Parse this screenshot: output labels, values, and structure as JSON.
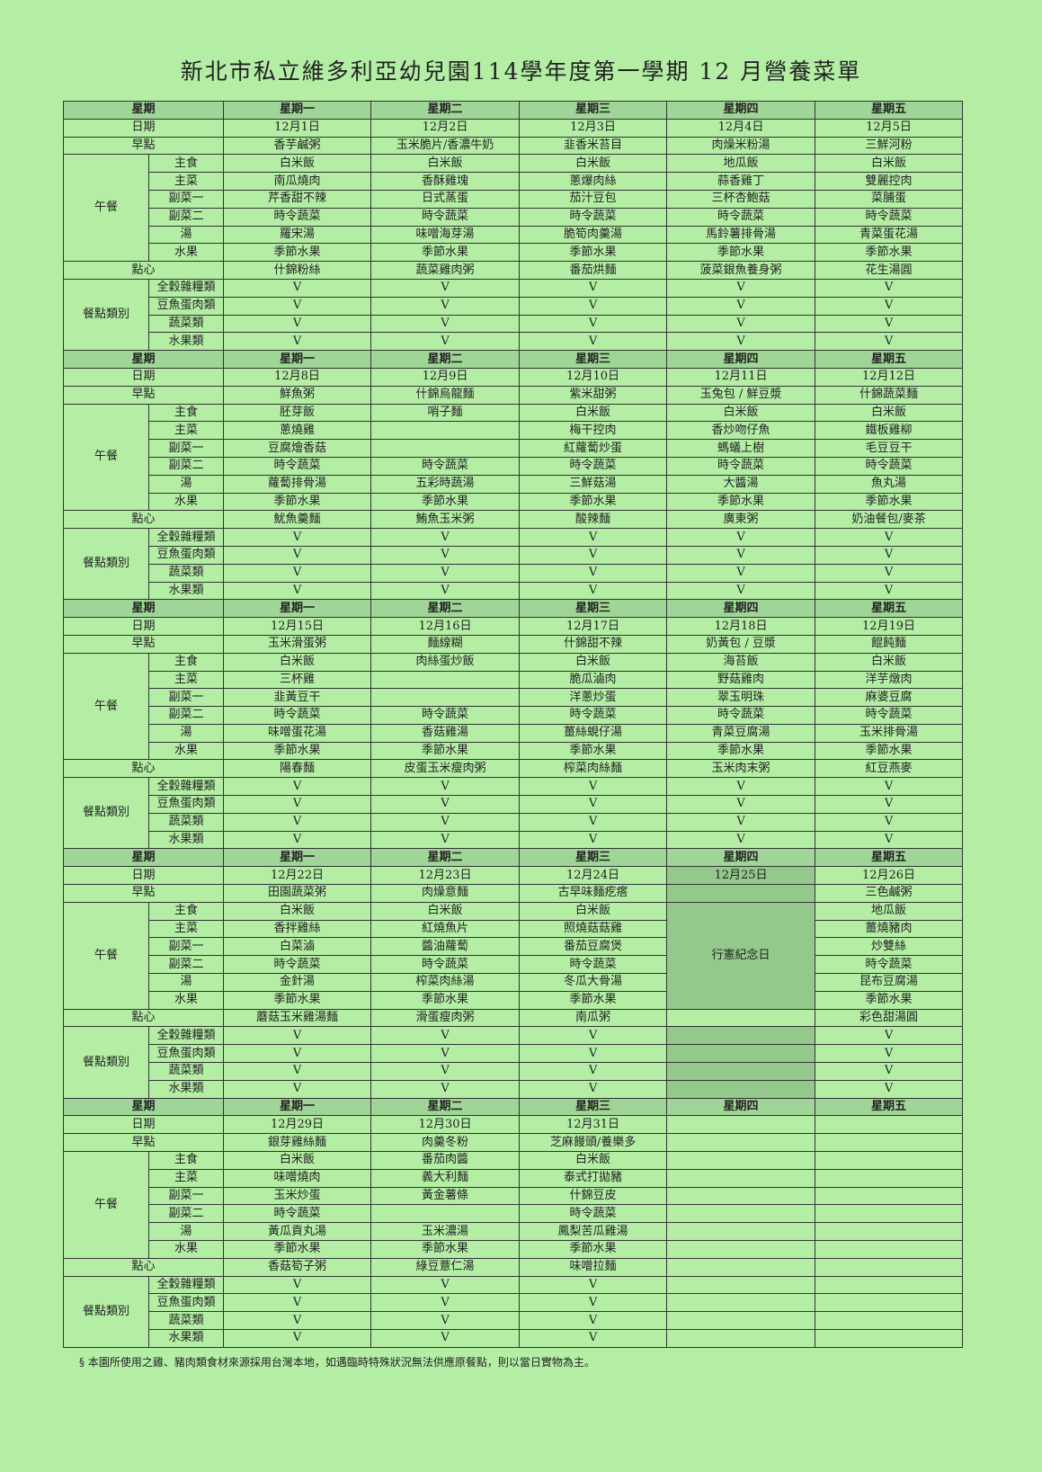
{
  "title": "新北市私立維多利亞幼兒園114學年度第一學期 12 月營養菜單",
  "labels": {
    "weekday": "星期",
    "date": "日期",
    "breakfast": "早點",
    "lunch": "午餐",
    "lunch_items": [
      "主食",
      "主菜",
      "副菜一",
      "副菜二",
      "湯",
      "水果"
    ],
    "snack": "點心",
    "category": "餐點類別",
    "category_items": [
      "全穀雜糧類",
      "豆魚蛋肉類",
      "蔬菜類",
      "水果類"
    ]
  },
  "weekdays": [
    "星期一",
    "星期二",
    "星期三",
    "星期四",
    "星期五"
  ],
  "weeks": [
    {
      "dates": [
        "12月1日",
        "12月2日",
        "12月3日",
        "12月4日",
        "12月5日"
      ],
      "breakfast": [
        "香芋鹹粥",
        "玉米脆片/香濃牛奶",
        "韭香米苔目",
        "肉燥米粉湯",
        "三鮮河粉"
      ],
      "lunch": [
        [
          "白米飯",
          "白米飯",
          "白米飯",
          "地瓜飯",
          "白米飯"
        ],
        [
          "南瓜燒肉",
          "香酥雞塊",
          "蔥爆肉絲",
          "蒜香雞丁",
          "雙麗控肉"
        ],
        [
          "芹香甜不辣",
          "日式蒸蛋",
          "茄汁豆包",
          "三杯杏鮑菇",
          "菜脯蛋"
        ],
        [
          "時令蔬菜",
          "時令蔬菜",
          "時令蔬菜",
          "時令蔬菜",
          "時令蔬菜"
        ],
        [
          "羅宋湯",
          "味噌海芽湯",
          "脆筍肉羹湯",
          "馬鈴薯排骨湯",
          "青菜蛋花湯"
        ],
        [
          "季節水果",
          "季節水果",
          "季節水果",
          "季節水果",
          "季節水果"
        ]
      ],
      "snack": [
        "什錦粉絲",
        "蔬菜雞肉粥",
        "番茄烘麵",
        "菠菜銀魚養身粥",
        "花生湯圓"
      ],
      "categories": [
        [
          "V",
          "V",
          "V",
          "V",
          "V"
        ],
        [
          "V",
          "V",
          "V",
          "V",
          "V"
        ],
        [
          "V",
          "V",
          "V",
          "V",
          "V"
        ],
        [
          "V",
          "V",
          "V",
          "V",
          "V"
        ]
      ]
    },
    {
      "dates": [
        "12月8日",
        "12月9日",
        "12月10日",
        "12月11日",
        "12月12日"
      ],
      "breakfast": [
        "鮮魚粥",
        "什錦烏龍麵",
        "紫米甜粥",
        "玉兔包 / 鮮豆漿",
        "什錦蔬菜麵"
      ],
      "lunch": [
        [
          "胚芽飯",
          "哨子麵",
          "白米飯",
          "白米飯",
          "白米飯"
        ],
        [
          "蔥燒雞",
          null,
          "梅干控肉",
          "香炒吻仔魚",
          "鐵板雞柳"
        ],
        [
          "豆腐燴香菇",
          null,
          "紅蘿蔔炒蛋",
          "螞蟻上樹",
          "毛豆豆干"
        ],
        [
          "時令蔬菜",
          "時令蔬菜",
          "時令蔬菜",
          "時令蔬菜",
          "時令蔬菜"
        ],
        [
          "蘿蔔排骨湯",
          "五彩時蔬湯",
          "三鮮菇湯",
          "大醬湯",
          "魚丸湯"
        ],
        [
          "季節水果",
          "季節水果",
          "季節水果",
          "季節水果",
          "季節水果"
        ]
      ],
      "snack": [
        "魷魚羹麵",
        "鮪魚玉米粥",
        "酸辣麵",
        "廣東粥",
        "奶油餐包/麥茶"
      ],
      "categories": [
        [
          "V",
          "V",
          "V",
          "V",
          "V"
        ],
        [
          "V",
          "V",
          "V",
          "V",
          "V"
        ],
        [
          "V",
          "V",
          "V",
          "V",
          "V"
        ],
        [
          "V",
          "V",
          "V",
          "V",
          "V"
        ]
      ]
    },
    {
      "dates": [
        "12月15日",
        "12月16日",
        "12月17日",
        "12月18日",
        "12月19日"
      ],
      "breakfast": [
        "玉米滑蛋粥",
        "麵線糊",
        "什錦甜不辣",
        "奶黃包 / 豆漿",
        "餛飩麵"
      ],
      "lunch": [
        [
          "白米飯",
          "肉絲蛋炒飯",
          "白米飯",
          "海苔飯",
          "白米飯"
        ],
        [
          "三杯雞",
          null,
          "脆瓜滷肉",
          "野菇雞肉",
          "洋芋燉肉"
        ],
        [
          "韭黃豆干",
          null,
          "洋蔥炒蛋",
          "翠玉明珠",
          "麻婆豆腐"
        ],
        [
          "時令蔬菜",
          "時令蔬菜",
          "時令蔬菜",
          "時令蔬菜",
          "時令蔬菜"
        ],
        [
          "味噌蛋花湯",
          "香菇雞湯",
          "薑絲蜆仔湯",
          "青菜豆腐湯",
          "玉米排骨湯"
        ],
        [
          "季節水果",
          "季節水果",
          "季節水果",
          "季節水果",
          "季節水果"
        ]
      ],
      "snack": [
        "陽春麵",
        "皮蛋玉米瘦肉粥",
        "榨菜肉絲麵",
        "玉米肉末粥",
        "紅豆燕麥"
      ],
      "categories": [
        [
          "V",
          "V",
          "V",
          "V",
          "V"
        ],
        [
          "V",
          "V",
          "V",
          "V",
          "V"
        ],
        [
          "V",
          "V",
          "V",
          "V",
          "V"
        ],
        [
          "V",
          "V",
          "V",
          "V",
          "V"
        ]
      ]
    },
    {
      "dates": [
        "12月22日",
        "12月23日",
        "12月24日",
        "12月25日",
        "12月26日"
      ],
      "holiday": "行憲紀念日",
      "breakfast": [
        "田園蔬菜粥",
        "肉燥意麵",
        "古早味麵疙瘩",
        null,
        "三色鹹粥"
      ],
      "lunch": [
        [
          "白米飯",
          "白米飯",
          "白米飯",
          null,
          "地瓜飯"
        ],
        [
          "香拌雞絲",
          "紅燒魚片",
          "照燒菇菇雞",
          null,
          "薑燒豬肉"
        ],
        [
          "白菜滷",
          "醬油蘿蔔",
          "番茄豆腐煲",
          null,
          "炒雙絲"
        ],
        [
          "時令蔬菜",
          "時令蔬菜",
          "時令蔬菜",
          null,
          "時令蔬菜"
        ],
        [
          "金針湯",
          "榨菜肉絲湯",
          "冬瓜大骨湯",
          null,
          "昆布豆腐湯"
        ],
        [
          "季節水果",
          "季節水果",
          "季節水果",
          null,
          "季節水果"
        ]
      ],
      "snack": [
        "蘑菇玉米雞湯麵",
        "滑蛋瘦肉粥",
        "南瓜粥",
        null,
        "彩色甜湯圓"
      ],
      "categories": [
        [
          "V",
          "V",
          "V",
          null,
          "V"
        ],
        [
          "V",
          "V",
          "V",
          null,
          "V"
        ],
        [
          "V",
          "V",
          "V",
          null,
          "V"
        ],
        [
          "V",
          "V",
          "V",
          null,
          "V"
        ]
      ]
    },
    {
      "dates": [
        "12月29日",
        "12月30日",
        "12月31日",
        null,
        null
      ],
      "breakfast": [
        "銀芽雞絲麵",
        "肉羹冬粉",
        "芝麻饅頭/養樂多",
        null,
        null
      ],
      "lunch": [
        [
          "白米飯",
          "番茄肉醬",
          "白米飯",
          null,
          null
        ],
        [
          "味噌燒肉",
          "義大利麵",
          "泰式打拋豬",
          null,
          null
        ],
        [
          "玉米炒蛋",
          "黃金薯條",
          "什錦豆皮",
          null,
          null
        ],
        [
          "時令蔬菜",
          null,
          "時令蔬菜",
          null,
          null
        ],
        [
          "黃瓜貢丸湯",
          "玉米濃湯",
          "鳳梨苦瓜雞湯",
          null,
          null
        ],
        [
          "季節水果",
          "季節水果",
          "季節水果",
          null,
          null
        ]
      ],
      "snack": [
        "香菇筍子粥",
        "綠豆薏仁湯",
        "味噌拉麵",
        null,
        null
      ],
      "categories": [
        [
          "V",
          "V",
          "V",
          null,
          null
        ],
        [
          "V",
          "V",
          "V",
          null,
          null
        ],
        [
          "V",
          "V",
          "V",
          null,
          null
        ],
        [
          "V",
          "V",
          "V",
          null,
          null
        ]
      ]
    }
  ],
  "footnote": "§ 本園所使用之雞、豬肉類食材來源採用台灣本地，如遇臨時特殊狀況無法供應原餐點，則以當日實物為主。"
}
